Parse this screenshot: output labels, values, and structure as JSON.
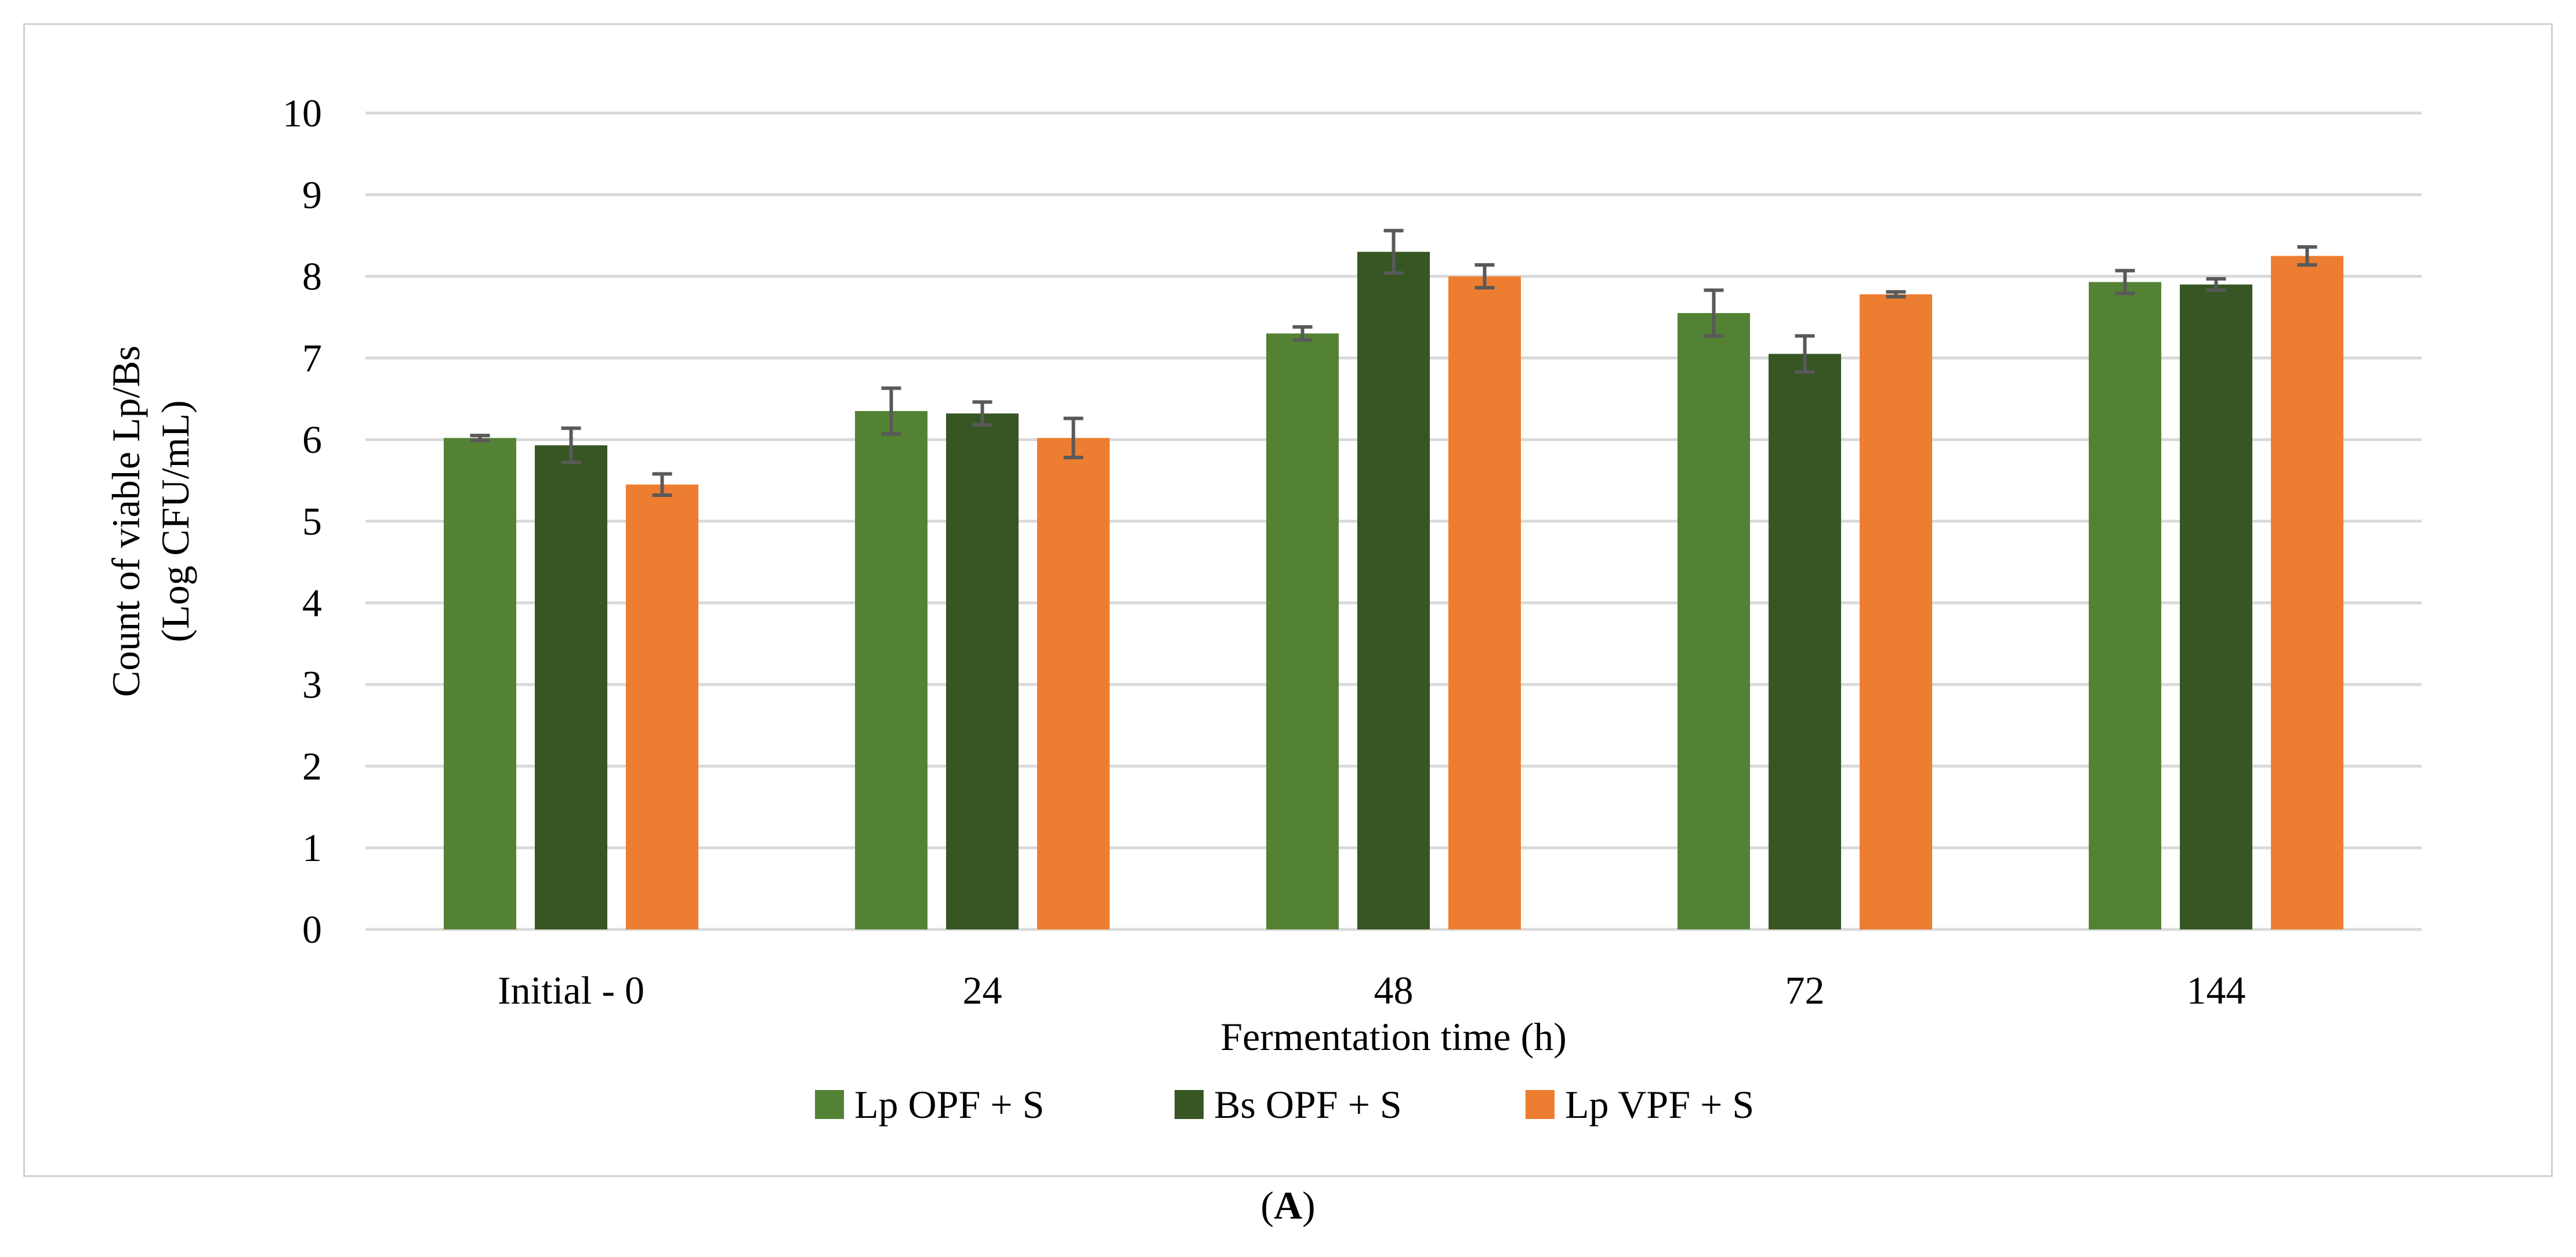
{
  "chart_data": {
    "type": "bar",
    "categories": [
      "Initial - 0",
      "24",
      "48",
      "72",
      "144"
    ],
    "series": [
      {
        "name": "Lp OPF + S",
        "color": "#548235",
        "values": [
          6.02,
          6.35,
          7.3,
          7.55,
          7.93
        ],
        "errors": [
          0.03,
          0.28,
          0.08,
          0.28,
          0.14
        ]
      },
      {
        "name": "Bs OPF + S",
        "color": "#375623",
        "values": [
          5.93,
          6.32,
          8.3,
          7.05,
          7.9
        ],
        "errors": [
          0.21,
          0.14,
          0.26,
          0.22,
          0.07
        ]
      },
      {
        "name": "Lp VPF + S",
        "color": "#ED7D31",
        "values": [
          5.45,
          6.02,
          8.0,
          7.78,
          8.25
        ],
        "errors": [
          0.13,
          0.24,
          0.14,
          0.03,
          0.11
        ]
      }
    ],
    "xlabel": "Fermentation time (h)",
    "ylabel_lines": [
      "Count of viable Lp/Bs",
      "(Log CFU/mL)"
    ],
    "ylim": [
      0,
      10
    ],
    "yticks": [
      0,
      1,
      2,
      3,
      4,
      5,
      6,
      7,
      8,
      9,
      10
    ],
    "grid": true,
    "legend_position": "bottom",
    "error_bar_color": "#595959",
    "gridline_color": "#d9d9d9"
  },
  "figure": {
    "panel_paren_open": "(",
    "panel_letter": "A",
    "panel_paren_close": ")"
  }
}
